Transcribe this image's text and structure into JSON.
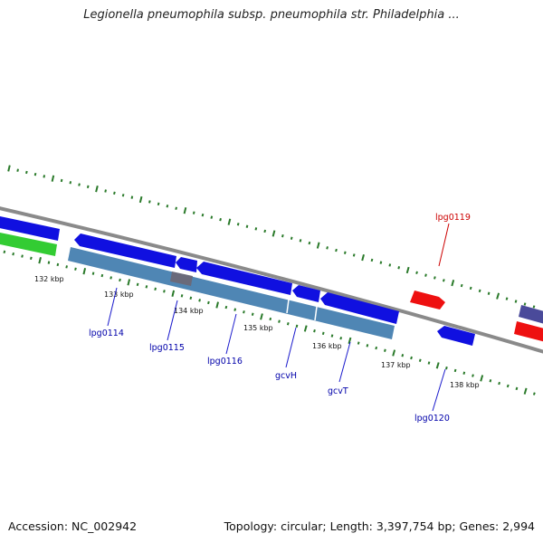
{
  "title": "Legionella pneumophila subsp. pneumophila str. Philadelphia ...",
  "footer": {
    "accession": "Accession: NC_002942",
    "summary": "Topology: circular; Length: 3,397,754 bp; Genes: 2,994"
  },
  "colors": {
    "background": "#ffffff",
    "backbone": "#8a8a8a",
    "tick": "#2a7a2a",
    "gene_blue": "#1010e0",
    "gene_red": "#ee1010",
    "gene_green": "#33cc33",
    "gene_purple": "#4a4a9a",
    "gene_steel": "#4f86b4",
    "label_blue": "#0000aa",
    "label_red": "#cc0000"
  },
  "tick_labels": [
    "132 kbp",
    "133 kbp",
    "134 kbp",
    "135 kbp",
    "136 kbp",
    "137 kbp",
    "138 kbp"
  ],
  "gene_labels": [
    {
      "name": "lpg0114",
      "color": "blue"
    },
    {
      "name": "lpg0115",
      "color": "blue"
    },
    {
      "name": "lpg0116",
      "color": "blue"
    },
    {
      "name": "gcvH",
      "color": "blue"
    },
    {
      "name": "gcvT",
      "color": "blue"
    },
    {
      "name": "lpg0119",
      "color": "red"
    },
    {
      "name": "lpg0120",
      "color": "blue"
    }
  ]
}
